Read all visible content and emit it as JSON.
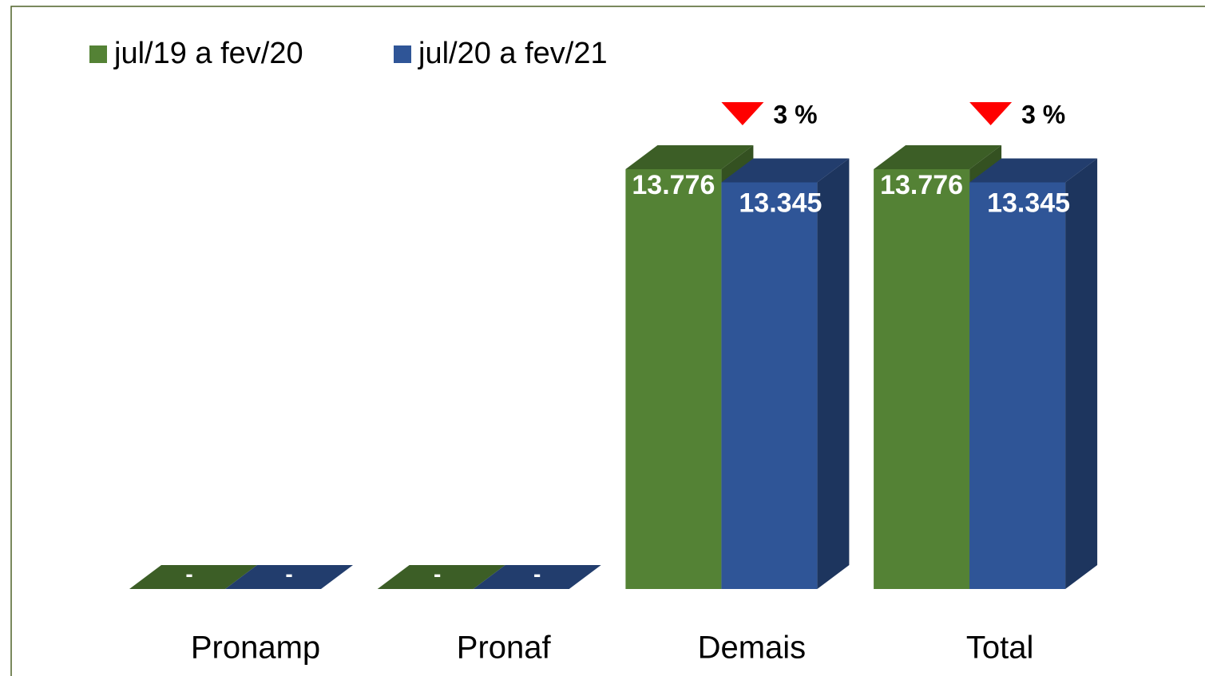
{
  "chart_data": {
    "type": "bar3d",
    "categories": [
      "Pronamp",
      "Pronaf",
      "Demais",
      "Total"
    ],
    "series": [
      {
        "name": "jul/19 a fev/20",
        "color": "#548235",
        "values": [
          0,
          0,
          13776,
          13776
        ],
        "value_labels": [
          "-",
          "-",
          "13.776",
          "13.776"
        ]
      },
      {
        "name": "jul/20 a fev/21",
        "color": "#2f5597",
        "values": [
          0,
          0,
          13345,
          13345
        ],
        "value_labels": [
          "-",
          "-",
          "13.345",
          "13.345"
        ]
      }
    ],
    "annotations": [
      "3 %",
      "3 %"
    ],
    "annotation_color": "#ff0000",
    "legend": "top-left"
  }
}
